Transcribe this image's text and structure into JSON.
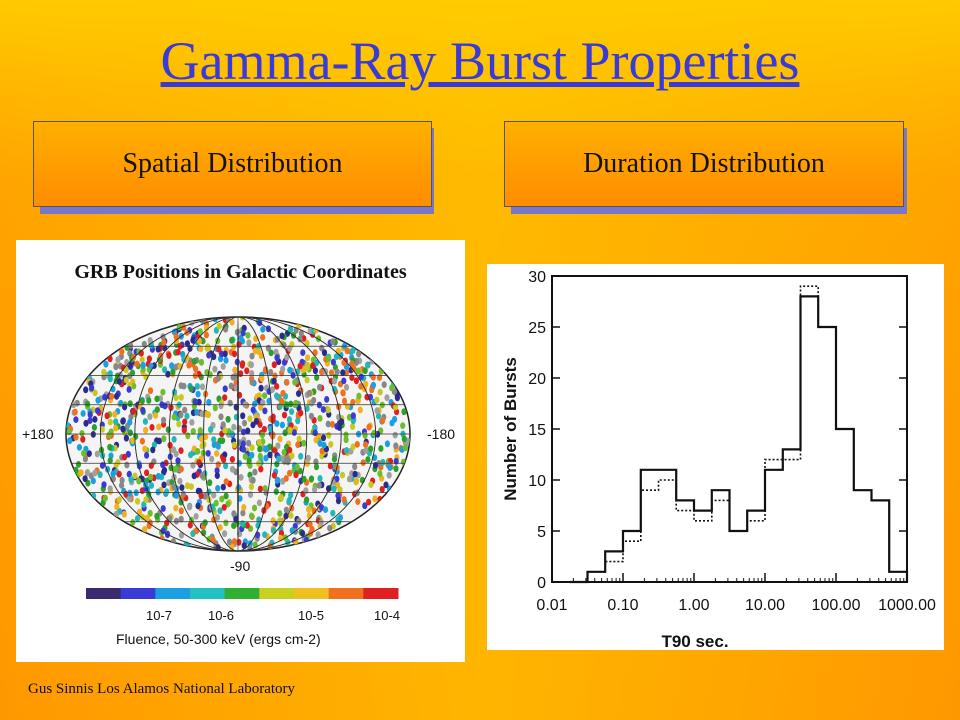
{
  "slide": {
    "title": "Gamma-Ray Burst Properties",
    "buttons": [
      {
        "label": "Spatial Distribution"
      },
      {
        "label": "Duration Distribution"
      }
    ],
    "footer": "Gus Sinnis Los Alamos National Laboratory",
    "colors": {
      "background": "#ff9e02",
      "title": "#3a3ad6",
      "button_shadow": "#7777cc"
    }
  },
  "sky_map": {
    "title": "GRB Positions in Galactic Coordinates",
    "left_label": "+180",
    "right_label": "-180",
    "bottom_label": "-90",
    "colorbar_ticks": [
      "10-7",
      "10-6",
      "10-5",
      "10-4"
    ],
    "colorbar_label": "Fluence, 50-300 keV (ergs cm-2)",
    "colorbar_colors": [
      "#3b2a6e",
      "#3a3ad6",
      "#1aa0e0",
      "#22c0c0",
      "#30b030",
      "#c8d020",
      "#f0c020",
      "#f07020",
      "#e02020"
    ]
  },
  "chart_data": {
    "type": "bar",
    "xlabel": "T90 sec.",
    "ylabel": "Number of Bursts",
    "xscale": "log",
    "xlim": [
      0.01,
      1000
    ],
    "ylim": [
      0,
      30
    ],
    "x_ticks": [
      "0.01",
      "0.10",
      "1.00",
      "10.00",
      "100.00",
      "1000.00"
    ],
    "y_ticks": [
      "0",
      "5",
      "10",
      "15",
      "20",
      "25",
      "30"
    ],
    "bin_edges": [
      0.0178,
      0.0316,
      0.0562,
      0.1,
      0.178,
      0.316,
      0.562,
      1.0,
      1.78,
      3.16,
      5.62,
      10.0,
      17.8,
      31.6,
      56.2,
      100.0,
      178,
      316,
      562
    ],
    "series": [
      {
        "style": "solid",
        "values": [
          0,
          1,
          3,
          5,
          11,
          11,
          8,
          7,
          9,
          5,
          7,
          11,
          13,
          28,
          25,
          15,
          9,
          8,
          1
        ]
      },
      {
        "style": "dotted",
        "values": [
          0,
          1,
          2,
          4,
          9,
          10,
          7,
          6,
          8,
          5,
          6,
          12,
          12,
          29,
          25,
          15,
          9,
          8,
          1
        ]
      }
    ]
  }
}
